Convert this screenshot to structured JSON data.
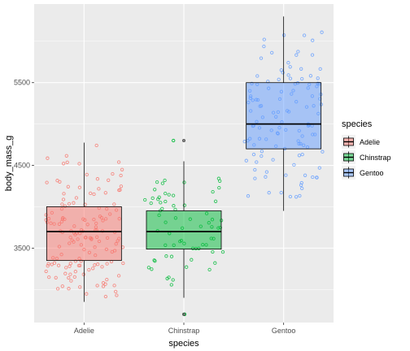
{
  "chart_data": {
    "type": "boxplot",
    "xlabel": "species",
    "ylabel": "body_mass_g",
    "ylim": [
      2600,
      6450
    ],
    "yticks": [
      3500,
      4500,
      5500
    ],
    "grid": true,
    "legend": {
      "title": "species",
      "position": "right",
      "entries": [
        "Adelie",
        "Chinstrap",
        "Gentoo"
      ]
    },
    "categories": [
      "Adelie",
      "Chinstrap",
      "Gentoo"
    ],
    "colors": {
      "Adelie": "#F8766D",
      "Chinstrap": "#00BA38",
      "Gentoo": "#619CFF",
      "panel_background": "#EBEBEB",
      "grid": "#FFFFFF"
    },
    "boxes": [
      {
        "name": "Adelie",
        "whisker_low": 2850,
        "q1": 3350,
        "median": 3700,
        "q3": 4000,
        "whisker_high": 4775,
        "outliers": [],
        "n_points": 151
      },
      {
        "name": "Chinstrap",
        "whisker_low": 2900,
        "q1": 3488,
        "median": 3700,
        "q3": 3950,
        "whisker_high": 4550,
        "outliers": [
          2700,
          4800
        ],
        "n_points": 68
      },
      {
        "name": "Gentoo",
        "whisker_low": 3950,
        "q1": 4700,
        "median": 5000,
        "q3": 5500,
        "whisker_high": 6300,
        "outliers": [],
        "n_points": 123
      }
    ]
  }
}
